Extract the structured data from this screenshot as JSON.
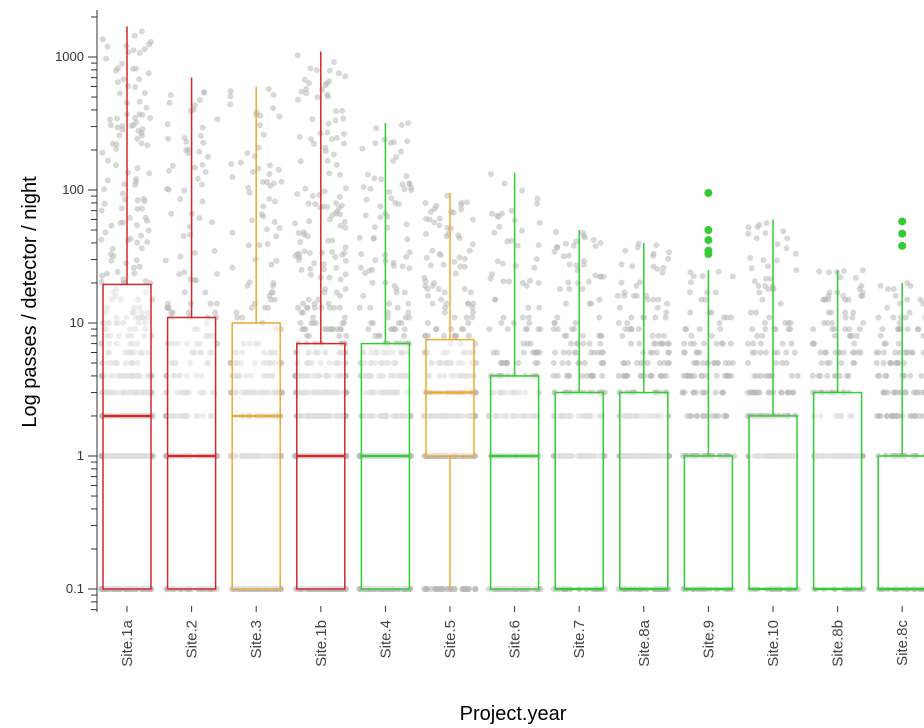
{
  "chart_data": {
    "type": "box",
    "xlabel": "Project.year",
    "ylabel": "Log passes / detector / night",
    "y_scale": "log",
    "ylim": [
      0.1,
      2000
    ],
    "y_ticks": [
      {
        "value": 0.1,
        "label": "0.1"
      },
      {
        "value": 1,
        "label": "1"
      },
      {
        "value": 10,
        "label": "10"
      },
      {
        "value": 100,
        "label": "100"
      },
      {
        "value": 1000,
        "label": "1000"
      }
    ],
    "grid": false,
    "legend": "none",
    "point_color": "#b8b8b8",
    "categories": [
      {
        "label": "Site.1a",
        "color": "#d62728",
        "whisker_low": 0.1,
        "q1": 0.1,
        "median": 2,
        "q3": 19.5,
        "whisker_high": 1700,
        "outliers": [],
        "point_density": 1.0
      },
      {
        "label": "Site.2",
        "color": "#d62728",
        "whisker_low": 0.1,
        "q1": 0.1,
        "median": 1,
        "q3": 11,
        "whisker_high": 700,
        "outliers": [],
        "point_density": 0.45
      },
      {
        "label": "Site.3",
        "color": "#f0a830",
        "whisker_low": 0.1,
        "q1": 0.1,
        "median": 2,
        "q3": 10,
        "whisker_high": 600,
        "outliers": [],
        "point_density": 0.5
      },
      {
        "label": "Site.1b",
        "color": "#d62728",
        "whisker_low": 0.1,
        "q1": 0.1,
        "median": 1,
        "q3": 7,
        "whisker_high": 1100,
        "outliers": [],
        "point_density": 0.95
      },
      {
        "label": "Site.4",
        "color": "#33cc33",
        "whisker_low": 0.1,
        "q1": 0.1,
        "median": 1,
        "q3": 7,
        "whisker_high": 320,
        "outliers": [],
        "point_density": 0.7
      },
      {
        "label": "Site.5",
        "color": "#f0a830",
        "whisker_low": 0.1,
        "q1": 1,
        "median": 3,
        "q3": 7.5,
        "whisker_high": 95,
        "outliers": [],
        "point_density": 0.55
      },
      {
        "label": "Site.6",
        "color": "#33cc33",
        "whisker_low": 0.1,
        "q1": 0.1,
        "median": 1,
        "q3": 4,
        "whisker_high": 135,
        "outliers": [],
        "point_density": 0.4
      },
      {
        "label": "Site.7",
        "color": "#33cc33",
        "whisker_low": 0.1,
        "q1": 0.1,
        "median": 0.1,
        "q3": 3,
        "whisker_high": 50,
        "outliers": [],
        "point_density": 0.4
      },
      {
        "label": "Site.8a",
        "color": "#33cc33",
        "whisker_low": 0.1,
        "q1": 0.1,
        "median": 0.1,
        "q3": 3,
        "whisker_high": 40,
        "outliers": [],
        "point_density": 0.45
      },
      {
        "label": "Site.9",
        "color": "#33cc33",
        "whisker_low": 0.1,
        "q1": 0.1,
        "median": 0.1,
        "q3": 1,
        "whisker_high": 25,
        "outliers": [
          33,
          35,
          42,
          50,
          95
        ],
        "point_density": 0.3
      },
      {
        "label": "Site.10",
        "color": "#33cc33",
        "whisker_low": 0.1,
        "q1": 0.1,
        "median": 0.1,
        "q3": 2,
        "whisker_high": 60,
        "outliers": [],
        "point_density": 0.35
      },
      {
        "label": "Site.8b",
        "color": "#33cc33",
        "whisker_low": 0.1,
        "q1": 0.1,
        "median": 0.1,
        "q3": 3,
        "whisker_high": 25,
        "outliers": [],
        "point_density": 0.3
      },
      {
        "label": "Site.8c",
        "color": "#33cc33",
        "whisker_low": 0.1,
        "q1": 0.1,
        "median": 0.1,
        "q3": 1,
        "whisker_high": 20,
        "outliers": [
          38,
          47,
          58
        ],
        "point_density": 0.3
      }
    ]
  }
}
